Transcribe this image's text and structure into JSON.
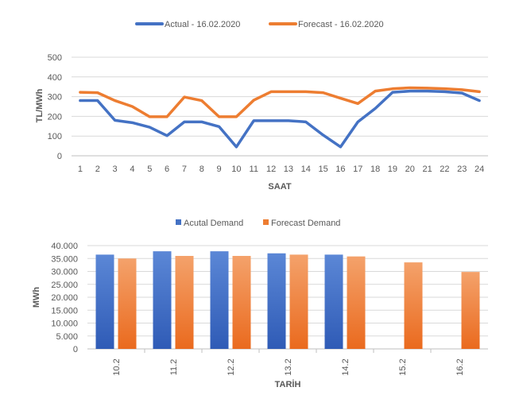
{
  "colors": {
    "actual_line": "#4472C4",
    "forecast_line": "#ED7D31",
    "actual_bar_top": "#5B87D6",
    "actual_bar_bottom": "#2F5BB6",
    "forecast_bar_top": "#F4A26B",
    "forecast_bar_bottom": "#EA6A1E",
    "grid": "#D9D9D9",
    "axis": "#BFBFBF",
    "text": "#595959"
  },
  "chart_data": [
    {
      "type": "line",
      "legend_position": "top-center",
      "xlabel": "SAAT",
      "ylabel": "TL/MWh",
      "x": [
        1,
        2,
        3,
        4,
        5,
        6,
        7,
        8,
        9,
        10,
        11,
        12,
        13,
        14,
        15,
        16,
        17,
        18,
        19,
        20,
        21,
        22,
        23,
        24
      ],
      "x_tick_labels": [
        "1",
        "2",
        "3",
        "4",
        "5",
        "6",
        "7",
        "8",
        "9",
        "10",
        "11",
        "12",
        "13",
        "14",
        "15",
        "16",
        "17",
        "18",
        "19",
        "20",
        "21",
        "22",
        "23",
        "24"
      ],
      "ylim": [
        0,
        500
      ],
      "y_ticks": [
        0,
        100,
        200,
        300,
        400,
        500
      ],
      "y_tick_labels": [
        "0",
        "100",
        "200",
        "300",
        "400",
        "500"
      ],
      "grid": true,
      "series": [
        {
          "name": "Actual - 16.02.2020",
          "color_key": "actual_line",
          "values": [
            280,
            280,
            180,
            168,
            145,
            102,
            172,
            172,
            148,
            45,
            178,
            178,
            178,
            172,
            105,
            45,
            172,
            240,
            322,
            328,
            328,
            325,
            318,
            280
          ]
        },
        {
          "name": "Forecast - 16.02.2020",
          "color_key": "forecast_line",
          "values": [
            322,
            320,
            280,
            250,
            198,
            198,
            298,
            280,
            198,
            198,
            282,
            325,
            325,
            325,
            320,
            292,
            265,
            328,
            340,
            345,
            343,
            340,
            335,
            325
          ]
        }
      ]
    },
    {
      "type": "bar",
      "legend_position": "top-center",
      "xlabel": "TARİH",
      "ylabel": "MWh",
      "categories": [
        "10.2",
        "11.2",
        "12.2",
        "13.2",
        "14.2",
        "15.2",
        "16.2"
      ],
      "ylim": [
        0,
        40000
      ],
      "y_ticks": [
        0,
        5000,
        10000,
        15000,
        20000,
        25000,
        30000,
        35000,
        40000
      ],
      "y_tick_labels": [
        "0",
        "5.000",
        "10.000",
        "15.000",
        "20.000",
        "25.000",
        "30.000",
        "35.000",
        "40.000"
      ],
      "grid": true,
      "series": [
        {
          "name": "Acutal Demand",
          "color_key": "actual_bar",
          "values": [
            36500,
            37800,
            37800,
            37000,
            36500,
            null,
            null
          ]
        },
        {
          "name": "Forecast Demand",
          "color_key": "forecast_bar",
          "values": [
            35000,
            36000,
            36000,
            36500,
            35800,
            33500,
            29800
          ]
        }
      ]
    }
  ]
}
